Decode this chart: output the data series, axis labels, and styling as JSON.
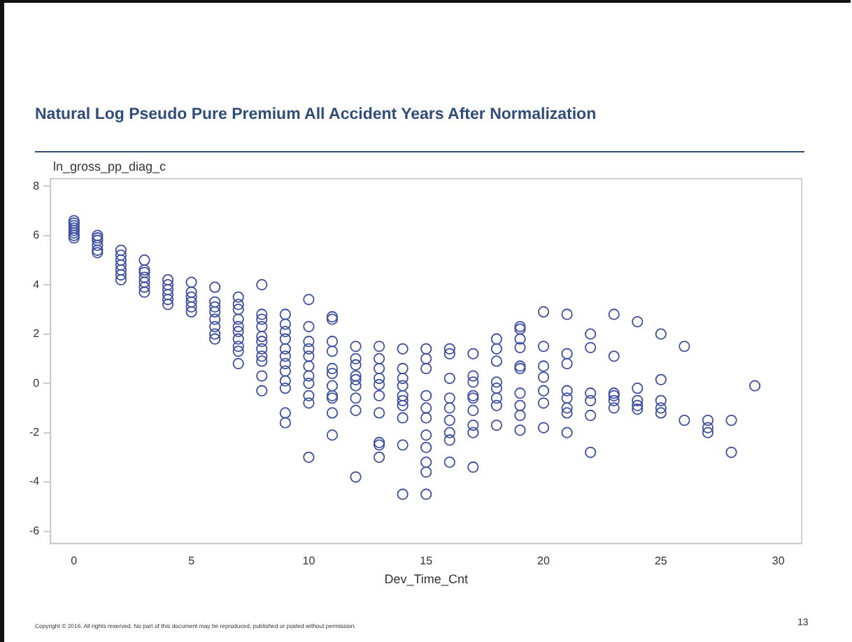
{
  "chart_data": {
    "type": "scatter",
    "title": "Natural Log Pseudo Pure Premium All Accident Years After Normalization",
    "xlabel": "Dev_Time_Cnt",
    "ylabel": "ln_gross_pp_diag_c",
    "marker": "circle",
    "grid": false,
    "legend": false,
    "xlim": [
      -1,
      31
    ],
    "xticks": [
      0,
      5,
      10,
      15,
      20,
      25,
      30
    ],
    "ylim": [
      -6.5,
      8.3
    ],
    "yticks": [
      -6,
      -4,
      -2,
      0,
      2,
      4,
      6,
      8
    ],
    "annotations": [
      "Copyright © 2016. All rights reserved. No part of this document may be reproduced, published or posted without permission.",
      "13"
    ],
    "series": [
      {
        "color": "#3d4f9e",
        "x": [
          0,
          0,
          0,
          0,
          0,
          0,
          0,
          0,
          1,
          1,
          1,
          1,
          1,
          1,
          2,
          2,
          2,
          2,
          2,
          2,
          2,
          3,
          3,
          3,
          3,
          3,
          3,
          3,
          4,
          4,
          4,
          4,
          4,
          4,
          5,
          5,
          5,
          5,
          5,
          5,
          6,
          6,
          6,
          6,
          6,
          6,
          6,
          6,
          7,
          7,
          7,
          7,
          7,
          7,
          7,
          7,
          7,
          7,
          8,
          8,
          8,
          8,
          8,
          8,
          8,
          8,
          8,
          8,
          8,
          9,
          9,
          9,
          9,
          9,
          9,
          9,
          9,
          9,
          9,
          9,
          9,
          10,
          10,
          10,
          10,
          10,
          10,
          10,
          10,
          10,
          10,
          10,
          11,
          11,
          11,
          11,
          11,
          11,
          11,
          11,
          11,
          11,
          11,
          12,
          12,
          12,
          12,
          12,
          12,
          12,
          12,
          12,
          13,
          13,
          13,
          13,
          13,
          13,
          13,
          13,
          13,
          13,
          14,
          14,
          14,
          14,
          14,
          14,
          14,
          14,
          14,
          14,
          15,
          15,
          15,
          15,
          15,
          15,
          15,
          15,
          15,
          15,
          15,
          16,
          16,
          16,
          16,
          16,
          16,
          16,
          16,
          16,
          17,
          17,
          17,
          17,
          17,
          17,
          17,
          17,
          17,
          18,
          18,
          18,
          18,
          18,
          18,
          18,
          18,
          19,
          19,
          19,
          19,
          19,
          19,
          19,
          19,
          19,
          19,
          20,
          20,
          20,
          20,
          20,
          20,
          20,
          21,
          21,
          21,
          21,
          21,
          21,
          21,
          21,
          22,
          22,
          22,
          22,
          22,
          22,
          23,
          23,
          23,
          23,
          23,
          23,
          24,
          24,
          24,
          24,
          24,
          25,
          25,
          25,
          25,
          25,
          26,
          26,
          27,
          27,
          27,
          28,
          28,
          29
        ],
        "values": [
          5.9,
          6.0,
          6.1,
          6.2,
          6.3,
          6.4,
          6.5,
          6.6,
          5.3,
          5.4,
          5.6,
          5.8,
          5.9,
          6.0,
          4.2,
          4.4,
          4.6,
          4.8,
          5.0,
          5.2,
          5.4,
          3.7,
          3.9,
          4.1,
          4.3,
          4.5,
          4.6,
          5.0,
          3.2,
          3.4,
          3.6,
          3.8,
          4.0,
          4.2,
          2.9,
          3.1,
          3.3,
          3.5,
          3.7,
          4.1,
          1.8,
          2.0,
          2.3,
          2.6,
          2.9,
          3.1,
          3.3,
          3.9,
          0.8,
          1.3,
          1.5,
          1.8,
          2.1,
          2.3,
          2.6,
          3.0,
          3.2,
          3.5,
          -0.3,
          0.3,
          0.9,
          1.1,
          1.4,
          1.7,
          1.9,
          2.3,
          2.6,
          2.8,
          4.0,
          -1.6,
          -1.2,
          -0.2,
          0.1,
          0.5,
          0.8,
          1.1,
          1.4,
          1.8,
          2.1,
          2.4,
          2.8,
          -3.0,
          -0.8,
          -0.5,
          0,
          0.3,
          0.7,
          1.1,
          1.4,
          1.7,
          2.3,
          3.4,
          2.7,
          2.6,
          1.7,
          1.3,
          0.6,
          0.4,
          -0.1,
          -0.5,
          -0.6,
          -1.2,
          -2.1,
          1.5,
          1.0,
          0.75,
          0.3,
          0.15,
          -0.1,
          -0.6,
          -1.1,
          -3.8,
          1.5,
          1.0,
          0.6,
          0.2,
          -0.05,
          -0.5,
          -1.2,
          -2.4,
          -2.5,
          -3.0,
          1.4,
          0.6,
          0.2,
          -0.1,
          -0.5,
          -0.7,
          -0.9,
          -1.4,
          -2.5,
          -4.5,
          1.4,
          1.0,
          0.6,
          -0.5,
          -1.0,
          -1.4,
          -2.1,
          -2.6,
          -3.2,
          -3.6,
          -4.5,
          1.4,
          1.2,
          0.2,
          -0.6,
          -1.0,
          -1.5,
          -2.0,
          -2.3,
          -3.2,
          1.2,
          0.3,
          0.05,
          -0.5,
          -0.6,
          -1.1,
          -1.7,
          -2.0,
          -3.4,
          1.8,
          1.4,
          0.9,
          0.05,
          -0.2,
          -0.6,
          -0.9,
          -1.7,
          2.3,
          2.2,
          1.8,
          1.45,
          0.7,
          0.6,
          -0.4,
          -0.9,
          -1.3,
          -1.9,
          2.9,
          1.5,
          0.7,
          0.25,
          -0.3,
          -0.8,
          -1.8,
          2.8,
          1.2,
          0.8,
          -0.3,
          -0.6,
          -1.0,
          -1.2,
          -2.0,
          2.0,
          1.45,
          -0.4,
          -0.7,
          -1.3,
          -2.8,
          2.8,
          1.1,
          -0.4,
          -0.5,
          -0.7,
          -1.0,
          2.5,
          -0.2,
          -0.7,
          -0.9,
          -1.05,
          2.0,
          0.15,
          -0.7,
          -1.0,
          -1.2,
          1.5,
          -1.5,
          -1.5,
          -1.8,
          -2.0,
          -1.5,
          -2.8,
          -0.1
        ]
      }
    ]
  }
}
